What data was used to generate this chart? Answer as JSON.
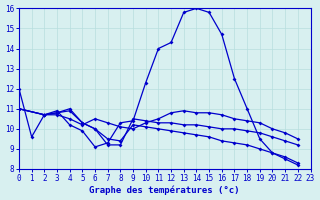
{
  "xlabel": "Graphe des températures (°c)",
  "background_color": "#d8f0f0",
  "line_color": "#0000cc",
  "grid_color": "#b8dede",
  "xlim": [
    0,
    23
  ],
  "ylim": [
    8,
    16
  ],
  "yticks": [
    8,
    9,
    10,
    11,
    12,
    13,
    14,
    15,
    16
  ],
  "xticks": [
    0,
    1,
    2,
    3,
    4,
    5,
    6,
    7,
    8,
    9,
    10,
    11,
    12,
    13,
    14,
    15,
    16,
    17,
    18,
    19,
    20,
    21,
    22,
    23
  ],
  "series": [
    {
      "x": [
        0,
        1,
        2,
        3,
        4,
        5,
        6,
        7,
        8,
        9,
        10,
        11,
        12,
        13,
        14,
        15,
        16,
        17,
        18,
        19,
        20,
        21,
        22
      ],
      "y": [
        12.0,
        9.6,
        10.7,
        10.9,
        10.2,
        9.9,
        9.1,
        9.3,
        10.3,
        10.4,
        12.3,
        14.0,
        14.3,
        15.8,
        16.0,
        15.8,
        14.7,
        12.5,
        11.0,
        9.5,
        8.8,
        8.5,
        8.2
      ]
    },
    {
      "x": [
        0,
        2,
        3,
        4,
        5,
        6,
        7,
        8,
        9,
        10,
        11,
        12,
        13,
        14,
        15,
        16,
        17,
        18,
        19,
        20,
        21,
        22
      ],
      "y": [
        11.0,
        10.7,
        10.7,
        10.5,
        10.2,
        10.5,
        10.3,
        10.1,
        10.0,
        10.3,
        10.5,
        10.8,
        10.9,
        10.8,
        10.8,
        10.7,
        10.5,
        10.4,
        10.3,
        10.0,
        9.8,
        9.5
      ]
    },
    {
      "x": [
        0,
        2,
        3,
        4,
        5,
        6,
        7,
        8,
        9,
        10,
        11,
        12,
        13,
        14,
        15,
        16,
        17,
        18,
        19,
        20,
        21,
        22
      ],
      "y": [
        11.0,
        10.7,
        10.8,
        11.0,
        10.3,
        10.0,
        9.2,
        9.2,
        10.5,
        10.4,
        10.3,
        10.3,
        10.2,
        10.2,
        10.1,
        10.0,
        10.0,
        9.9,
        9.8,
        9.6,
        9.4,
        9.2
      ]
    },
    {
      "x": [
        0,
        2,
        3,
        4,
        5,
        6,
        7,
        8,
        9,
        10,
        11,
        12,
        13,
        14,
        15,
        16,
        17,
        18,
        19,
        20,
        21,
        22
      ],
      "y": [
        11.0,
        10.7,
        10.8,
        10.9,
        10.3,
        10.0,
        9.5,
        9.4,
        10.2,
        10.1,
        10.0,
        9.9,
        9.8,
        9.7,
        9.6,
        9.4,
        9.3,
        9.2,
        9.0,
        8.8,
        8.6,
        8.3
      ]
    }
  ]
}
